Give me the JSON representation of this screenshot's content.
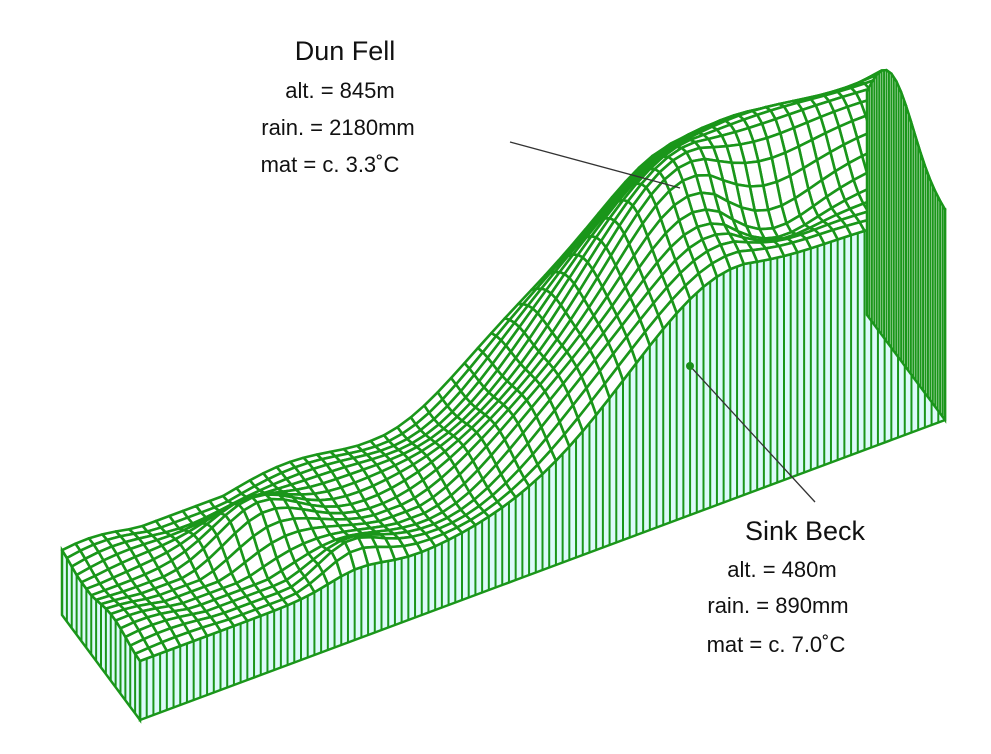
{
  "annotations": [
    {
      "name": "Dun Fell",
      "lines": [
        "alt. = 845m",
        "rain. = 2180mm",
        "mat = c. 3.3˚C"
      ]
    },
    {
      "name": "Sink Beck",
      "lines": [
        "alt. = 480m",
        "rain. = 890mm",
        "mat = c. 7.0˚C"
      ]
    }
  ]
}
